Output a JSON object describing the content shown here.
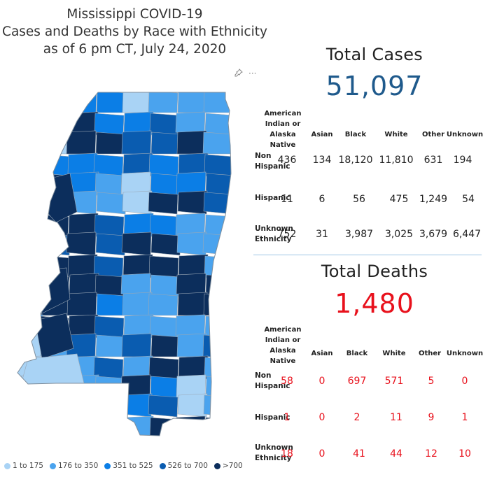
{
  "title": {
    "line1": "Mississippi COVID-19",
    "line2": "Cases and Deaths by Race with Ethnicity",
    "line3": "as of 6 pm CT, July 24, 2020"
  },
  "colors": {
    "tier1": "#a9d3f5",
    "tier2": "#4aa3ee",
    "tier3": "#0b7ee6",
    "tier4": "#0a5cb0",
    "tier5": "#0c2e5c",
    "cases_number": "#1f5a8c",
    "deaths_number": "#e8111c"
  },
  "legend": [
    {
      "label": "1 to 175",
      "color": "#a9d3f5"
    },
    {
      "label": "176 to 350",
      "color": "#4aa3ee"
    },
    {
      "label": "351 to 525",
      "color": "#0b7ee6"
    },
    {
      "label": "526 to 700",
      "color": "#0a5cb0"
    },
    {
      "label": ">700",
      "color": "#0c2e5c"
    }
  ],
  "icons": [
    "pin-icon",
    "more-options-icon"
  ],
  "cases": {
    "title": "Total Cases",
    "total": "51,097",
    "columns": [
      "American Indian or Alaska Native",
      "Asian",
      "Black",
      "White",
      "Other",
      "Unknown"
    ],
    "rows": [
      {
        "label": "Non Hispanic",
        "values": [
          "436",
          "134",
          "18,120",
          "11,810",
          "631",
          "194"
        ]
      },
      {
        "label": "Hispanic",
        "values": [
          "11",
          "6",
          "56",
          "475",
          "1,249",
          "54"
        ]
      },
      {
        "label": "Unknown Ethnicity",
        "values": [
          "752",
          "31",
          "3,987",
          "3,025",
          "3,679",
          "6,447"
        ]
      }
    ]
  },
  "deaths": {
    "title": "Total Deaths",
    "total": "1,480",
    "columns": [
      "American Indian or Alaska Native",
      "Asian",
      "Black",
      "White",
      "Other",
      "Unknown"
    ],
    "rows": [
      {
        "label": "Non Hispanic",
        "values": [
          "58",
          "0",
          "697",
          "571",
          "5",
          "0"
        ]
      },
      {
        "label": "Hispanic",
        "values": [
          "1",
          "0",
          "2",
          "11",
          "9",
          "1"
        ]
      },
      {
        "label": "Unknown Ethnicity",
        "values": [
          "18",
          "0",
          "41",
          "44",
          "12",
          "10"
        ]
      }
    ]
  }
}
